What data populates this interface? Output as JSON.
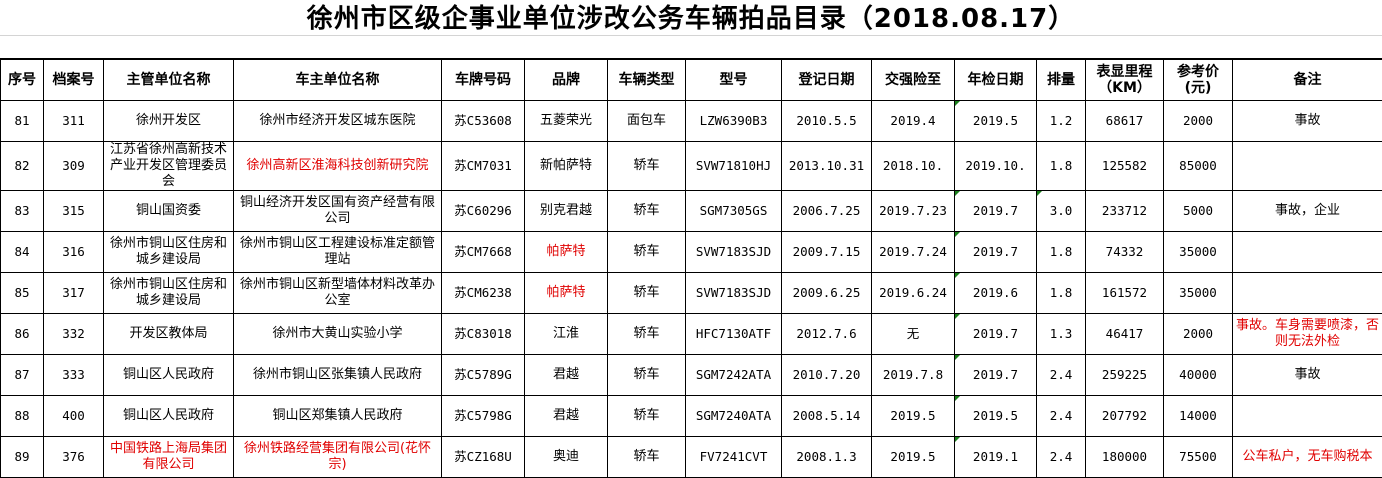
{
  "title": "徐州市区级企事业单位涉改公务车辆拍品目录（2018.08.17）",
  "colors": {
    "highlight_text": "#e00000",
    "text_marker": "#1a7f1a"
  },
  "columns": [
    "序号",
    "档案号",
    "主管单位名称",
    "车主单位名称",
    "车牌号码",
    "品牌",
    "车辆类型",
    "型号",
    "登记日期",
    "交强险至",
    "年检日期",
    "排量",
    "表显里程（KM）",
    "参考价(元)",
    "备注"
  ],
  "rows": [
    {
      "no": "81",
      "file": "311",
      "dept": "徐州开发区",
      "owner": "徐州市经济开发区城东医院",
      "plate": "苏C53608",
      "brand": "五菱荣光",
      "type": "面包车",
      "model": "LZW6390B3",
      "reg": "2010.5.5",
      "ins": "2019.4",
      "insp": "2019.5",
      "disp": "1.2",
      "km": "68617",
      "price": "2000",
      "note": "事故"
    },
    {
      "no": "82",
      "file": "309",
      "dept": "江苏省徐州高新技术产业开发区管理委员会",
      "owner": "徐州高新区淮海科技创新研究院",
      "plate": "苏CM7031",
      "brand": "新帕萨特",
      "type": "轿车",
      "model": "SVW71810HJ",
      "reg": "2013.10.31",
      "ins": "2018.10.",
      "insp": "2019.10.",
      "disp": "1.8",
      "km": "125582",
      "price": "85000",
      "note": ""
    },
    {
      "no": "83",
      "file": "315",
      "dept": "铜山国资委",
      "owner": "铜山经济开发区国有资产经营有限公司",
      "plate": "苏C60296",
      "brand": "别克君越",
      "type": "轿车",
      "model": "SGM7305GS",
      "reg": "2006.7.25",
      "ins": "2019.7.23",
      "insp": "2019.7",
      "disp": "3.0",
      "km": "233712",
      "price": "5000",
      "note": "事故，企业"
    },
    {
      "no": "84",
      "file": "316",
      "dept": "徐州市铜山区住房和城乡建设局",
      "owner": "徐州市铜山区工程建设标准定额管理站",
      "plate": "苏CM7668",
      "brand": "帕萨特",
      "type": "轿车",
      "model": "SVW7183SJD",
      "reg": "2009.7.15",
      "ins": "2019.7.24",
      "insp": "2019.7",
      "disp": "1.8",
      "km": "74332",
      "price": "35000",
      "note": ""
    },
    {
      "no": "85",
      "file": "317",
      "dept": "徐州市铜山区住房和城乡建设局",
      "owner": "徐州市铜山区新型墙体材料改革办公室",
      "plate": "苏CM6238",
      "brand": "帕萨特",
      "type": "轿车",
      "model": "SVW7183SJD",
      "reg": "2009.6.25",
      "ins": "2019.6.24",
      "insp": "2019.6",
      "disp": "1.8",
      "km": "161572",
      "price": "35000",
      "note": ""
    },
    {
      "no": "86",
      "file": "332",
      "dept": "开发区教体局",
      "owner": "徐州市大黄山实验小学",
      "plate": "苏C83018",
      "brand": "江淮",
      "type": "轿车",
      "model": "HFC7130ATF",
      "reg": "2012.7.6",
      "ins": "无",
      "insp": "2019.7",
      "disp": "1.3",
      "km": "46417",
      "price": "2000",
      "note": "事故。车身需要喷漆，否则无法外检"
    },
    {
      "no": "87",
      "file": "333",
      "dept": "铜山区人民政府",
      "owner": "徐州市铜山区张集镇人民政府",
      "plate": "苏C5789G",
      "brand": "君越",
      "type": "轿车",
      "model": "SGM7242ATA",
      "reg": "2010.7.20",
      "ins": "2019.7.8",
      "insp": "2019.7",
      "disp": "2.4",
      "km": "259225",
      "price": "40000",
      "note": "事故"
    },
    {
      "no": "88",
      "file": "400",
      "dept": "铜山区人民政府",
      "owner": "铜山区郑集镇人民政府",
      "plate": "苏C5798G",
      "brand": "君越",
      "type": "轿车",
      "model": "SGM7240ATA",
      "reg": "2008.5.14",
      "ins": "2019.5",
      "insp": "2019.5",
      "disp": "2.4",
      "km": "207792",
      "price": "14000",
      "note": ""
    },
    {
      "no": "89",
      "file": "376",
      "dept": "中国铁路上海局集团有限公司",
      "owner": "徐州铁路经营集团有限公司(花怀宗)",
      "plate": "苏CZ168U",
      "brand": "奥迪",
      "type": "轿车",
      "model": "FV7241CVT",
      "reg": "2008.1.3",
      "ins": "2019.5",
      "insp": "2019.1",
      "disp": "2.4",
      "km": "180000",
      "price": "75500",
      "note": "公车私户，无车购税本"
    }
  ]
}
